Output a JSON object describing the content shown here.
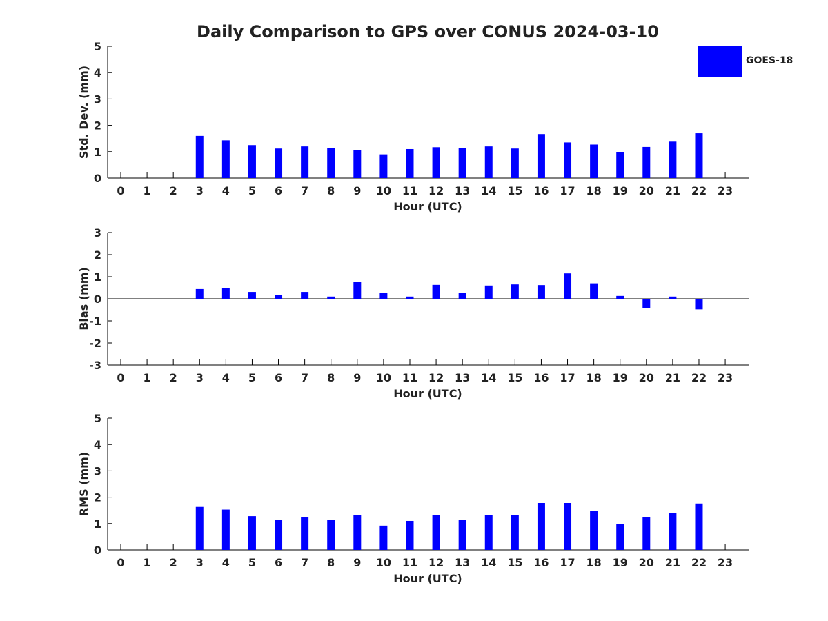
{
  "title": "Daily Comparison to GPS over CONUS 2024-03-10",
  "legend": {
    "label": "GOES-18",
    "color": "#0000ff",
    "placement": "top-right"
  },
  "chart_data": [
    {
      "type": "bar",
      "ylabel": "Std. Dev. (mm)",
      "xlabel": "Hour (UTC)",
      "ylim": [
        0,
        5
      ],
      "yticks": [
        0,
        1,
        2,
        3,
        4,
        5
      ],
      "categories": [
        "0",
        "1",
        "2",
        "3",
        "4",
        "5",
        "6",
        "7",
        "8",
        "9",
        "10",
        "11",
        "12",
        "13",
        "14",
        "15",
        "16",
        "17",
        "18",
        "19",
        "20",
        "21",
        "22",
        "23"
      ],
      "series": [
        {
          "name": "GOES-18",
          "values": [
            null,
            null,
            null,
            1.6,
            1.43,
            1.25,
            1.12,
            1.2,
            1.15,
            1.07,
            0.9,
            1.1,
            1.17,
            1.15,
            1.2,
            1.12,
            1.67,
            1.35,
            1.27,
            0.97,
            1.18,
            1.38,
            1.7,
            null
          ]
        }
      ],
      "grid": false
    },
    {
      "type": "bar",
      "ylabel": "Bias (mm)",
      "xlabel": "Hour (UTC)",
      "ylim": [
        -3,
        3
      ],
      "yticks": [
        -3,
        -2,
        -1,
        0,
        1,
        2,
        3
      ],
      "categories": [
        "0",
        "1",
        "2",
        "3",
        "4",
        "5",
        "6",
        "7",
        "8",
        "9",
        "10",
        "11",
        "12",
        "13",
        "14",
        "15",
        "16",
        "17",
        "18",
        "19",
        "20",
        "21",
        "22",
        "23"
      ],
      "series": [
        {
          "name": "GOES-18",
          "values": [
            null,
            null,
            null,
            0.44,
            0.48,
            0.31,
            0.16,
            0.31,
            0.1,
            0.75,
            0.28,
            0.1,
            0.63,
            0.28,
            0.6,
            0.65,
            0.62,
            1.15,
            0.7,
            0.13,
            -0.42,
            0.1,
            -0.48,
            null
          ]
        }
      ],
      "grid": false
    },
    {
      "type": "bar",
      "ylabel": "RMS (mm)",
      "xlabel": "Hour (UTC)",
      "ylim": [
        0,
        5
      ],
      "yticks": [
        0,
        1,
        2,
        3,
        4,
        5
      ],
      "categories": [
        "0",
        "1",
        "2",
        "3",
        "4",
        "5",
        "6",
        "7",
        "8",
        "9",
        "10",
        "11",
        "12",
        "13",
        "14",
        "15",
        "16",
        "17",
        "18",
        "19",
        "20",
        "21",
        "22",
        "23"
      ],
      "series": [
        {
          "name": "GOES-18",
          "values": [
            null,
            null,
            null,
            1.63,
            1.53,
            1.28,
            1.13,
            1.23,
            1.13,
            1.31,
            0.92,
            1.1,
            1.31,
            1.15,
            1.33,
            1.31,
            1.78,
            1.78,
            1.47,
            0.97,
            1.23,
            1.4,
            1.76,
            null
          ]
        }
      ],
      "grid": false
    }
  ]
}
